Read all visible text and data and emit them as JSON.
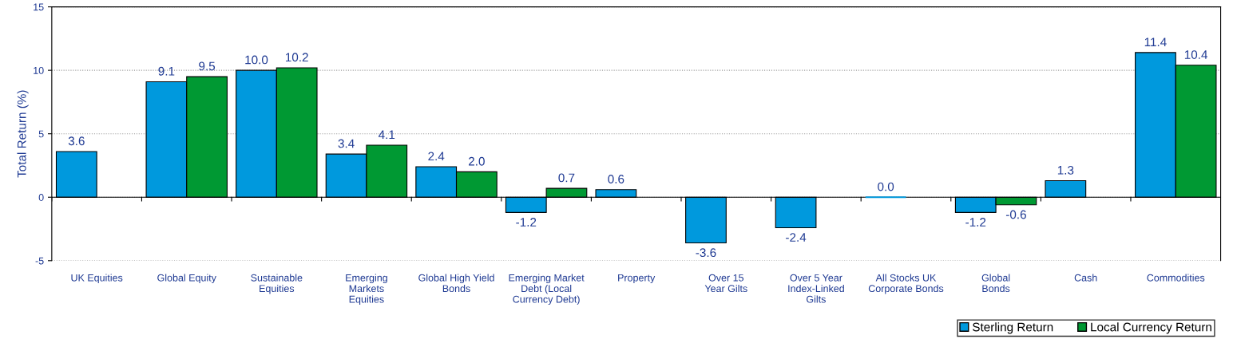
{
  "chart_data": {
    "type": "bar",
    "ylabel": "Total Return (%)",
    "categories": [
      "UK Equities",
      "Global Equity",
      "Sustainable\nEquities",
      "Emerging\nMarkets\nEquities",
      "Global High Yield\nBonds",
      "Emerging Market\nDebt (Local\nCurrency Debt)",
      "Property",
      "Over 15\nYear Gilts",
      "Over 5 Year\nIndex-Linked\nGilts",
      "All Stocks UK\nCorporate Bonds",
      "Global\nBonds",
      "Cash",
      "Commodities"
    ],
    "series": [
      {
        "name": "Sterling Return",
        "color": "#0099dd",
        "values": [
          3.6,
          9.1,
          10.0,
          3.4,
          2.4,
          -1.2,
          0.6,
          -3.6,
          -2.4,
          0.0,
          -1.2,
          1.3,
          11.4
        ],
        "value_labels": [
          "3.6",
          "9.1",
          "10.0",
          "3.4",
          "2.4",
          "-1.2",
          "0.6",
          "-3.6",
          "-2.4",
          "0.0",
          "-1.2",
          "1.3",
          "11.4"
        ]
      },
      {
        "name": "Local Currency Return",
        "color": "#009933",
        "values": [
          null,
          9.5,
          10.2,
          4.1,
          2.0,
          0.7,
          null,
          null,
          null,
          null,
          -0.6,
          null,
          10.4
        ],
        "value_labels": [
          null,
          "9.5",
          "10.2",
          "4.1",
          "2.0",
          "0.7",
          null,
          null,
          null,
          null,
          "-0.6",
          null,
          "10.4"
        ]
      }
    ],
    "ylim": [
      -5,
      15
    ],
    "yticks": [
      -5,
      0,
      5,
      10,
      15
    ],
    "grid": "y",
    "legend": "bottom right",
    "ref_lines": [
      {
        "axis": "y",
        "value": 0,
        "color": "#000000"
      }
    ]
  }
}
